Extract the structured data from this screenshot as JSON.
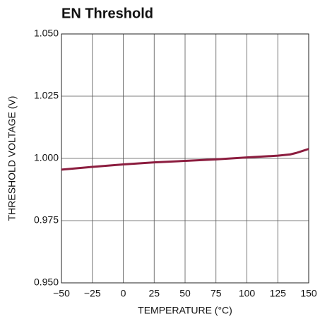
{
  "chart_data": {
    "type": "line",
    "title": "EN Threshold",
    "xlabel": "TEMPERATURE (°C)",
    "ylabel": "THRESHOLD VOLTAGE (V)",
    "x": [
      -50,
      -25,
      0,
      25,
      50,
      75,
      100,
      125,
      135,
      140,
      145,
      150
    ],
    "series": [
      {
        "name": "EN Threshold",
        "color": "#8c1d3f",
        "values": [
          0.9955,
          0.9966,
          0.9976,
          0.9984,
          0.999,
          0.9996,
          1.0004,
          1.0011,
          1.0016,
          1.0022,
          1.003,
          1.0038
        ]
      }
    ],
    "xlim": [
      -50,
      150
    ],
    "xticks": [
      {
        "value": -50,
        "label": "−50"
      },
      {
        "value": -25,
        "label": "−25"
      },
      0,
      25,
      50,
      75,
      100,
      125,
      150
    ],
    "ylim": [
      0.95,
      1.05
    ],
    "yticks": [
      {
        "value": 0.95,
        "label": "0.950"
      },
      {
        "value": 0.975,
        "label": "0.975"
      },
      {
        "value": 1.0,
        "label": "1.000"
      },
      {
        "value": 1.025,
        "label": "1.025"
      },
      {
        "value": 1.05,
        "label": "1.050"
      }
    ],
    "grid": true
  }
}
